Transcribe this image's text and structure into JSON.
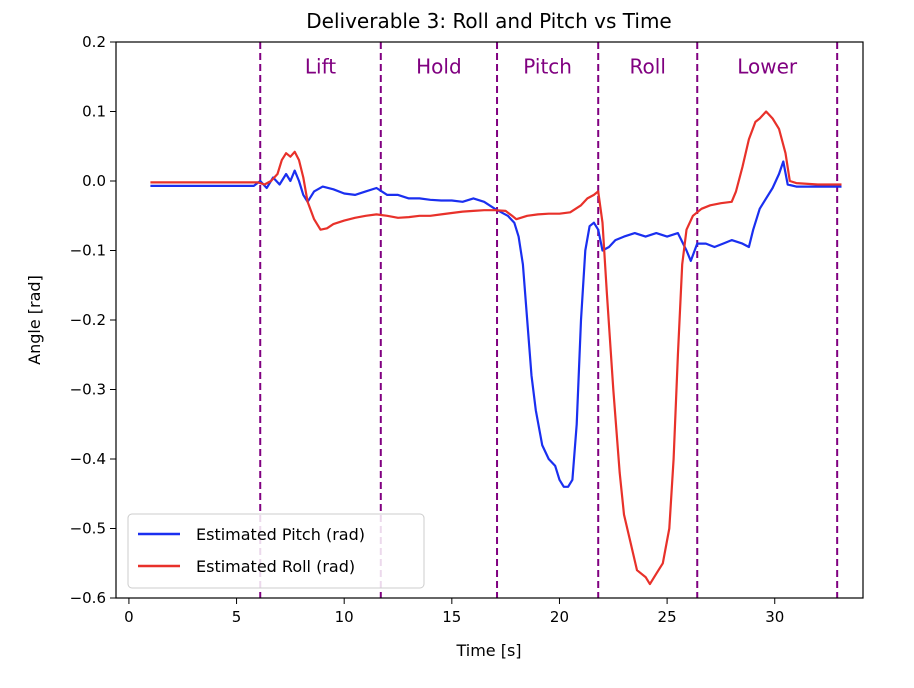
{
  "chart_data": {
    "type": "line",
    "title": "Deliverable 3: Roll and Pitch vs Time",
    "xlabel": "Time [s]",
    "ylabel": "Angle [rad]",
    "xlim": [
      -0.6,
      34.1
    ],
    "ylim": [
      -0.6,
      0.2
    ],
    "xticks": [
      0,
      5,
      10,
      15,
      20,
      25,
      30
    ],
    "yticks": [
      0.2,
      0.1,
      0.0,
      -0.1,
      -0.2,
      -0.3,
      -0.4,
      -0.5,
      -0.6
    ],
    "yticklabels": [
      "0.2",
      "0.1",
      "0.0",
      "−0.1",
      "−0.2",
      "−0.3",
      "−0.4",
      "−0.5",
      "−0.6"
    ],
    "grid": false,
    "legend_position": "bottom-left",
    "phase_lines": [
      6.1,
      11.7,
      17.1,
      21.8,
      26.4,
      32.9
    ],
    "phase_line_color": "#800080",
    "phases": [
      {
        "label": "Lift",
        "x": 8.9
      },
      {
        "label": "Hold",
        "x": 14.4
      },
      {
        "label": "Pitch",
        "x": 19.45
      },
      {
        "label": "Roll",
        "x": 24.1
      },
      {
        "label": "Lower",
        "x": 29.65
      }
    ],
    "phase_label_y": 0.155,
    "series": [
      {
        "name": "Estimated Pitch (rad)",
        "color": "#1a2ff0",
        "points": [
          [
            1.0,
            -0.007
          ],
          [
            2.0,
            -0.007
          ],
          [
            3.0,
            -0.007
          ],
          [
            4.0,
            -0.007
          ],
          [
            5.0,
            -0.007
          ],
          [
            5.8,
            -0.007
          ],
          [
            6.1,
            0.0
          ],
          [
            6.4,
            -0.01
          ],
          [
            6.7,
            0.005
          ],
          [
            7.0,
            -0.005
          ],
          [
            7.3,
            0.01
          ],
          [
            7.5,
            0.0
          ],
          [
            7.7,
            0.015
          ],
          [
            7.9,
            0.0
          ],
          [
            8.1,
            -0.02
          ],
          [
            8.3,
            -0.03
          ],
          [
            8.6,
            -0.015
          ],
          [
            9.0,
            -0.008
          ],
          [
            9.5,
            -0.012
          ],
          [
            10.0,
            -0.018
          ],
          [
            10.5,
            -0.02
          ],
          [
            11.0,
            -0.015
          ],
          [
            11.5,
            -0.01
          ],
          [
            12.0,
            -0.02
          ],
          [
            12.5,
            -0.02
          ],
          [
            13.0,
            -0.025
          ],
          [
            13.5,
            -0.025
          ],
          [
            14.0,
            -0.027
          ],
          [
            14.5,
            -0.028
          ],
          [
            15.0,
            -0.028
          ],
          [
            15.5,
            -0.03
          ],
          [
            16.0,
            -0.025
          ],
          [
            16.5,
            -0.03
          ],
          [
            17.0,
            -0.04
          ],
          [
            17.3,
            -0.045
          ],
          [
            17.6,
            -0.05
          ],
          [
            17.9,
            -0.06
          ],
          [
            18.1,
            -0.08
          ],
          [
            18.3,
            -0.12
          ],
          [
            18.5,
            -0.2
          ],
          [
            18.7,
            -0.28
          ],
          [
            18.9,
            -0.33
          ],
          [
            19.2,
            -0.38
          ],
          [
            19.5,
            -0.4
          ],
          [
            19.8,
            -0.41
          ],
          [
            20.0,
            -0.43
          ],
          [
            20.2,
            -0.44
          ],
          [
            20.4,
            -0.44
          ],
          [
            20.6,
            -0.43
          ],
          [
            20.8,
            -0.35
          ],
          [
            21.0,
            -0.2
          ],
          [
            21.2,
            -0.1
          ],
          [
            21.4,
            -0.065
          ],
          [
            21.6,
            -0.06
          ],
          [
            21.8,
            -0.07
          ],
          [
            22.0,
            -0.1
          ],
          [
            22.3,
            -0.095
          ],
          [
            22.6,
            -0.085
          ],
          [
            23.0,
            -0.08
          ],
          [
            23.5,
            -0.075
          ],
          [
            24.0,
            -0.08
          ],
          [
            24.5,
            -0.075
          ],
          [
            25.0,
            -0.08
          ],
          [
            25.5,
            -0.075
          ],
          [
            25.9,
            -0.1
          ],
          [
            26.1,
            -0.115
          ],
          [
            26.4,
            -0.09
          ],
          [
            26.8,
            -0.09
          ],
          [
            27.2,
            -0.095
          ],
          [
            27.6,
            -0.09
          ],
          [
            28.0,
            -0.085
          ],
          [
            28.5,
            -0.09
          ],
          [
            28.8,
            -0.095
          ],
          [
            29.0,
            -0.07
          ],
          [
            29.3,
            -0.04
          ],
          [
            29.6,
            -0.025
          ],
          [
            29.9,
            -0.01
          ],
          [
            30.2,
            0.01
          ],
          [
            30.4,
            0.028
          ],
          [
            30.6,
            -0.005
          ],
          [
            31.0,
            -0.008
          ],
          [
            32.0,
            -0.008
          ],
          [
            33.1,
            -0.008
          ]
        ]
      },
      {
        "name": "Estimated Roll (rad)",
        "color": "#e8312a",
        "points": [
          [
            1.0,
            -0.002
          ],
          [
            2.0,
            -0.002
          ],
          [
            3.0,
            -0.002
          ],
          [
            4.0,
            -0.002
          ],
          [
            5.0,
            -0.002
          ],
          [
            6.0,
            -0.002
          ],
          [
            6.3,
            -0.005
          ],
          [
            6.6,
            0.0
          ],
          [
            6.9,
            0.01
          ],
          [
            7.1,
            0.03
          ],
          [
            7.3,
            0.04
          ],
          [
            7.5,
            0.035
          ],
          [
            7.7,
            0.042
          ],
          [
            7.9,
            0.03
          ],
          [
            8.1,
            0.005
          ],
          [
            8.3,
            -0.03
          ],
          [
            8.6,
            -0.055
          ],
          [
            8.9,
            -0.07
          ],
          [
            9.2,
            -0.068
          ],
          [
            9.5,
            -0.062
          ],
          [
            10.0,
            -0.057
          ],
          [
            10.5,
            -0.053
          ],
          [
            11.0,
            -0.05
          ],
          [
            11.5,
            -0.048
          ],
          [
            12.0,
            -0.05
          ],
          [
            12.5,
            -0.053
          ],
          [
            13.0,
            -0.052
          ],
          [
            13.5,
            -0.05
          ],
          [
            14.0,
            -0.05
          ],
          [
            14.5,
            -0.048
          ],
          [
            15.0,
            -0.046
          ],
          [
            15.5,
            -0.044
          ],
          [
            16.0,
            -0.043
          ],
          [
            16.5,
            -0.042
          ],
          [
            17.0,
            -0.042
          ],
          [
            17.5,
            -0.043
          ],
          [
            17.8,
            -0.05
          ],
          [
            18.0,
            -0.055
          ],
          [
            18.5,
            -0.05
          ],
          [
            19.0,
            -0.048
          ],
          [
            19.5,
            -0.047
          ],
          [
            20.0,
            -0.047
          ],
          [
            20.5,
            -0.045
          ],
          [
            21.0,
            -0.035
          ],
          [
            21.3,
            -0.025
          ],
          [
            21.6,
            -0.02
          ],
          [
            21.8,
            -0.015
          ],
          [
            22.0,
            -0.06
          ],
          [
            22.2,
            -0.16
          ],
          [
            22.5,
            -0.3
          ],
          [
            22.8,
            -0.42
          ],
          [
            23.0,
            -0.48
          ],
          [
            23.3,
            -0.52
          ],
          [
            23.6,
            -0.56
          ],
          [
            24.0,
            -0.57
          ],
          [
            24.2,
            -0.58
          ],
          [
            24.5,
            -0.565
          ],
          [
            24.8,
            -0.55
          ],
          [
            25.1,
            -0.5
          ],
          [
            25.3,
            -0.4
          ],
          [
            25.5,
            -0.25
          ],
          [
            25.7,
            -0.12
          ],
          [
            25.9,
            -0.07
          ],
          [
            26.2,
            -0.05
          ],
          [
            26.6,
            -0.04
          ],
          [
            27.0,
            -0.035
          ],
          [
            27.5,
            -0.032
          ],
          [
            28.0,
            -0.03
          ],
          [
            28.2,
            -0.015
          ],
          [
            28.5,
            0.02
          ],
          [
            28.8,
            0.06
          ],
          [
            29.1,
            0.085
          ],
          [
            29.3,
            0.09
          ],
          [
            29.6,
            0.1
          ],
          [
            29.9,
            0.09
          ],
          [
            30.2,
            0.075
          ],
          [
            30.5,
            0.04
          ],
          [
            30.7,
            0.0
          ],
          [
            31.0,
            -0.003
          ],
          [
            32.0,
            -0.005
          ],
          [
            33.1,
            -0.005
          ]
        ]
      }
    ]
  }
}
